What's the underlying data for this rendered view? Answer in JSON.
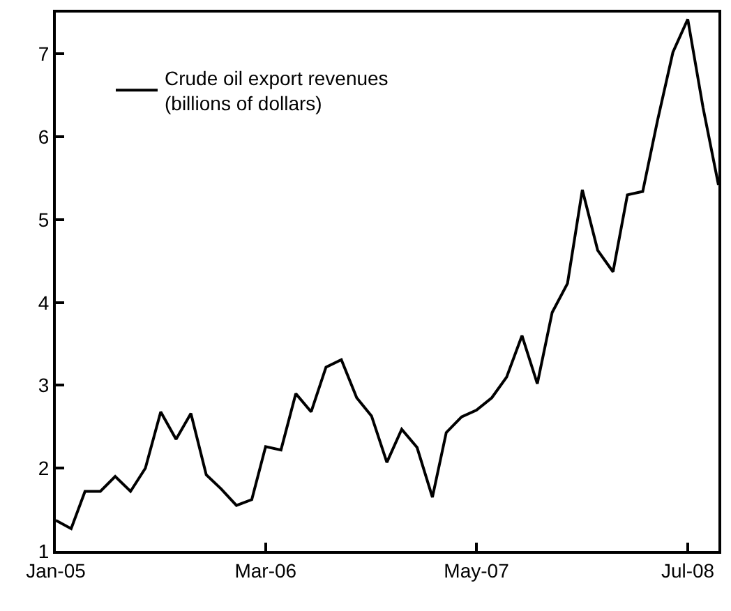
{
  "chart_data": {
    "type": "line",
    "x": [
      "2005-01",
      "2005-02",
      "2005-03",
      "2005-04",
      "2005-05",
      "2005-06",
      "2005-07",
      "2005-08",
      "2005-09",
      "2005-10",
      "2005-11",
      "2005-12",
      "2006-01",
      "2006-02",
      "2006-03",
      "2006-04",
      "2006-05",
      "2006-06",
      "2006-07",
      "2006-08",
      "2006-09",
      "2006-10",
      "2006-11",
      "2006-12",
      "2007-01",
      "2007-02",
      "2007-03",
      "2007-04",
      "2007-05",
      "2007-06",
      "2007-07",
      "2007-08",
      "2007-09",
      "2007-10",
      "2007-11",
      "2007-12",
      "2008-01",
      "2008-02",
      "2008-03",
      "2008-04",
      "2008-05",
      "2008-06",
      "2008-07",
      "2008-08",
      "2008-09"
    ],
    "series": [
      {
        "name": "Crude oil export revenues\n(billions of dollars)",
        "color": "#000000",
        "values": [
          1.37,
          1.27,
          1.72,
          1.72,
          1.9,
          1.72,
          2.0,
          2.68,
          2.35,
          2.66,
          1.92,
          1.75,
          1.55,
          1.62,
          2.26,
          2.22,
          2.9,
          2.68,
          3.22,
          3.31,
          2.85,
          2.63,
          2.07,
          2.47,
          2.25,
          1.65,
          2.43,
          2.62,
          2.7,
          2.85,
          3.1,
          3.6,
          3.02,
          3.88,
          4.23,
          5.36,
          4.63,
          4.37,
          5.3,
          5.34,
          6.2,
          7.02,
          7.42,
          6.35,
          5.42
        ]
      }
    ],
    "xlim": [
      "2005-01",
      "2008-09"
    ],
    "xticks": [
      {
        "value": "2005-01",
        "label": "Jan-05"
      },
      {
        "value": "2006-03",
        "label": "Mar-06"
      },
      {
        "value": "2007-05",
        "label": "May-07"
      },
      {
        "value": "2008-07",
        "label": "Jul-08"
      }
    ],
    "ylim": [
      1,
      7.5
    ],
    "yticks": [
      1,
      2,
      3,
      4,
      5,
      6,
      7
    ],
    "legend": "top left",
    "marker": "none",
    "line_style": "solid"
  }
}
